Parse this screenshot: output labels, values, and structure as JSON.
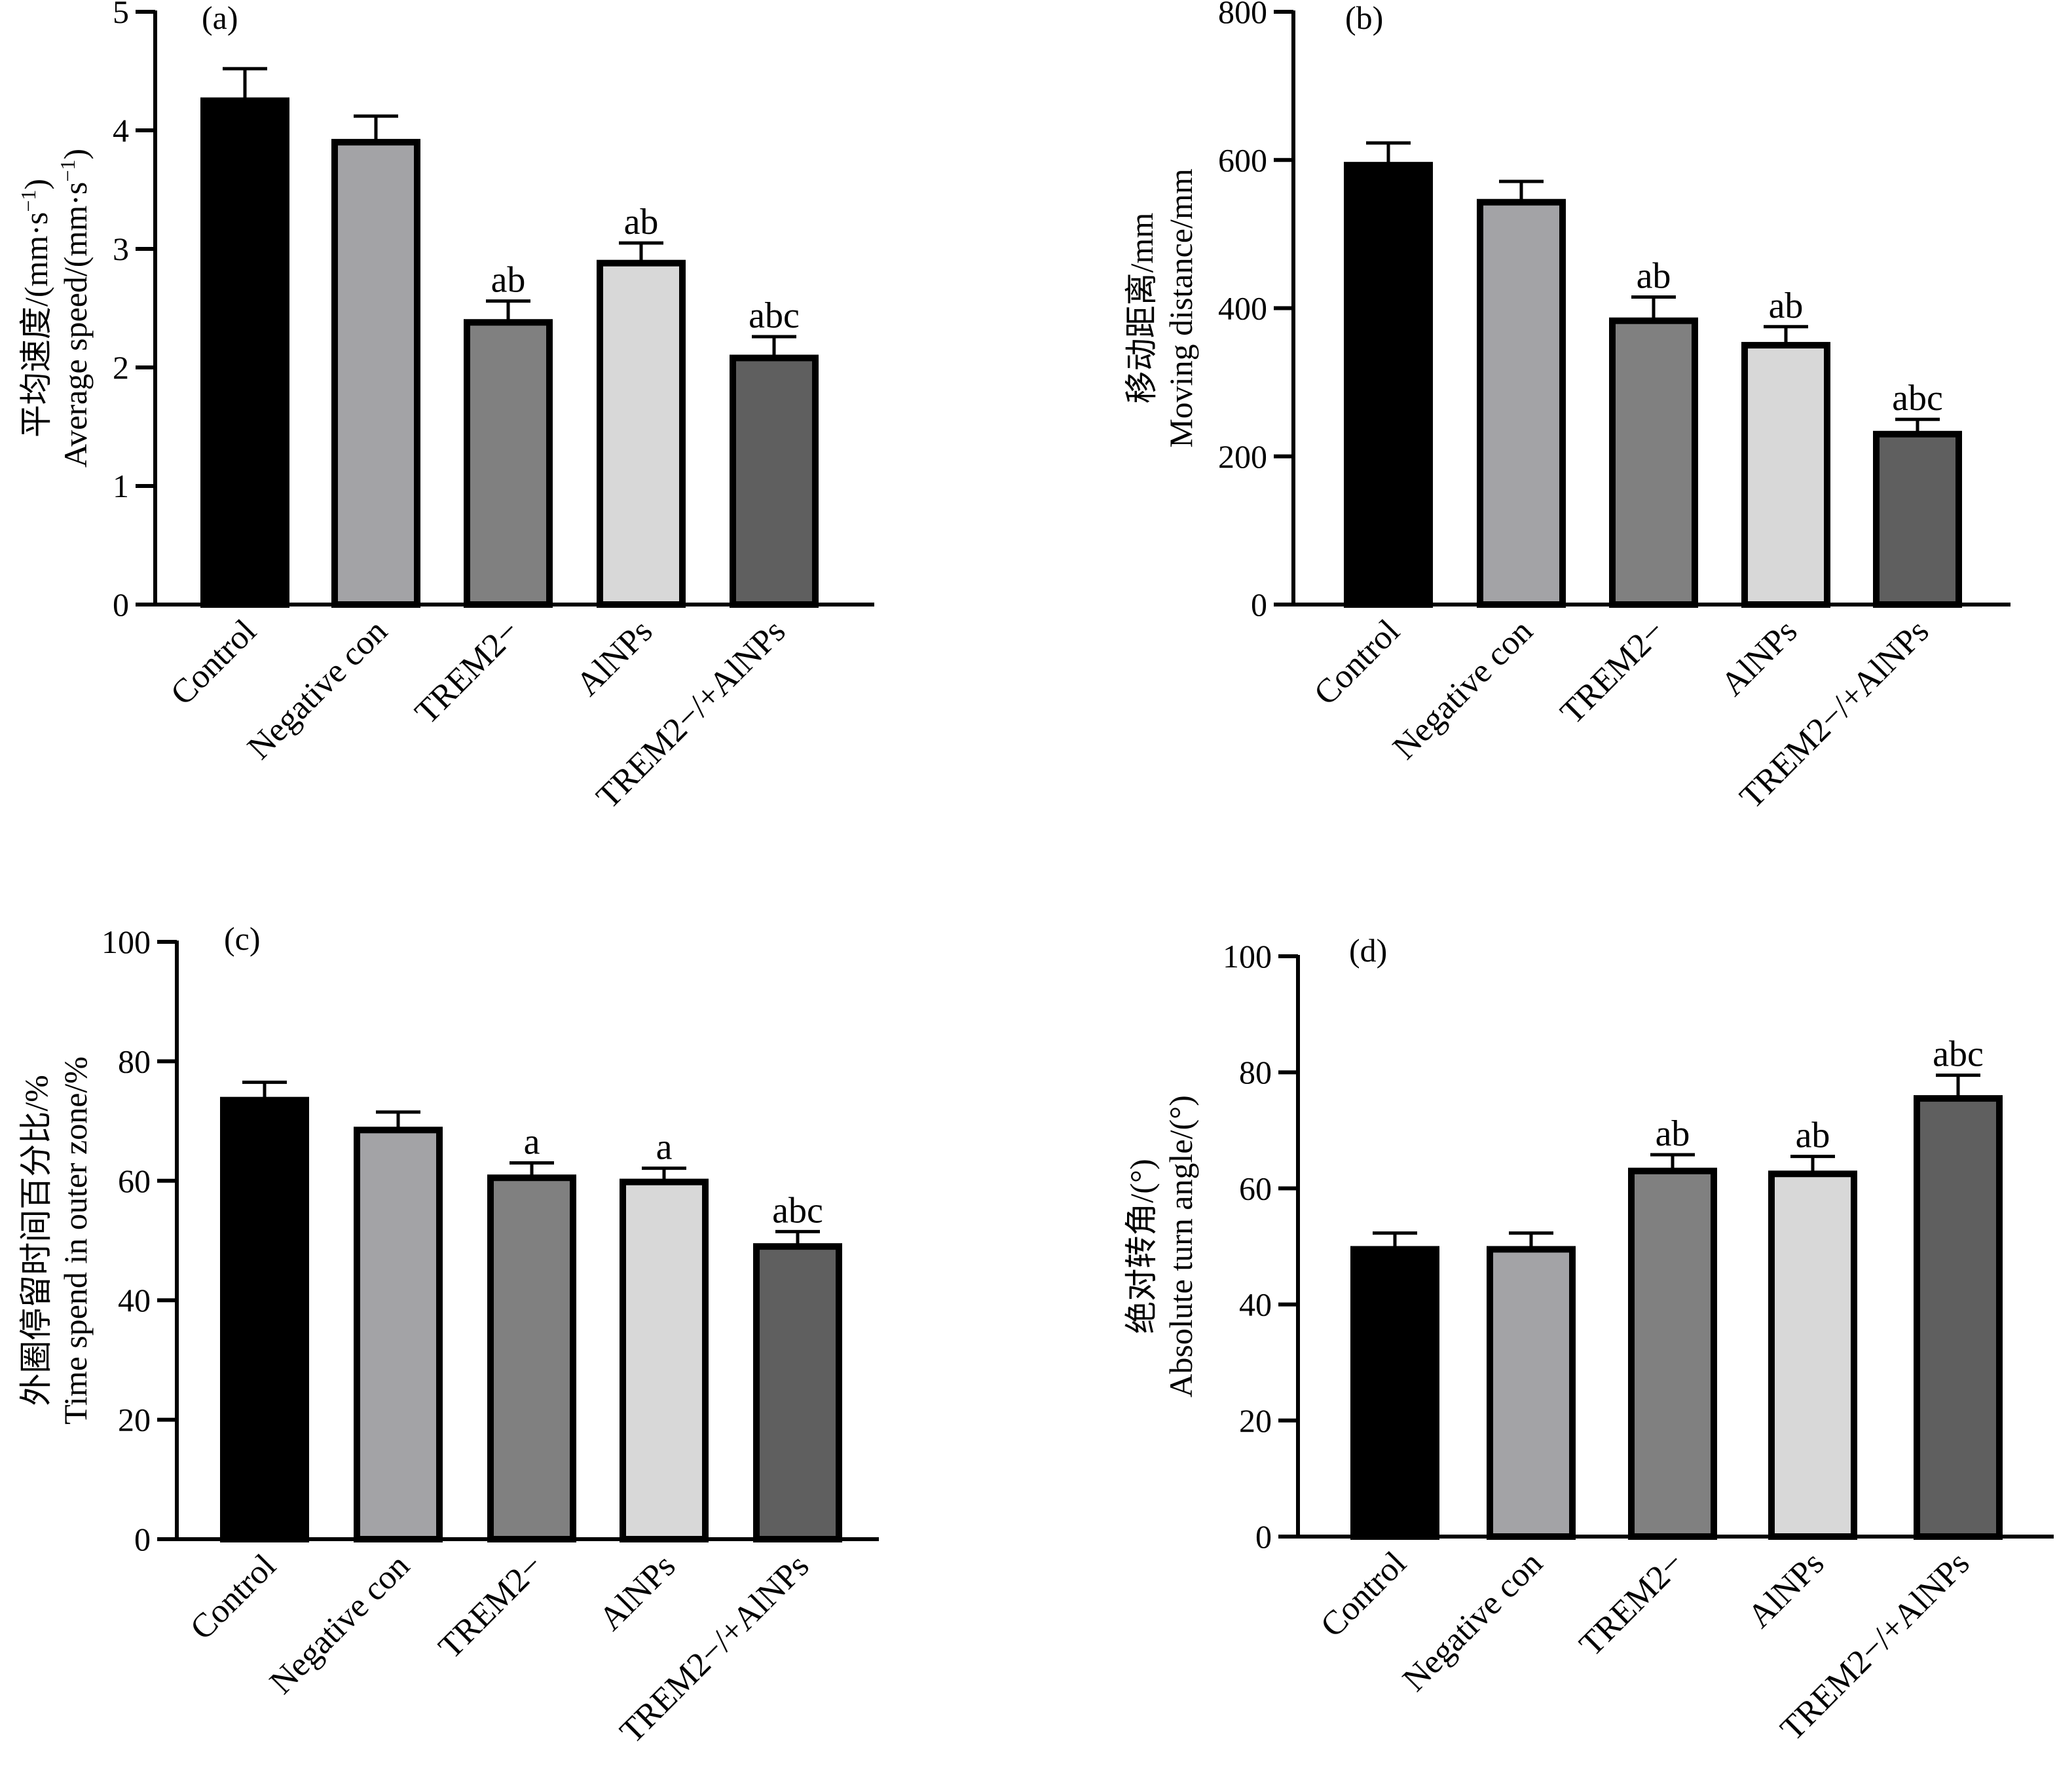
{
  "colors": {
    "control": "#000000",
    "negative_con": "#a3a3a6",
    "trem2": "#808080",
    "alnps": "#d8d8d8",
    "trem2_alnps": "#5f5f5f",
    "outline": "#000000"
  },
  "chart_data": [
    {
      "type": "bar",
      "panel_label": "(a)",
      "ylabel_cn": "平均速度/(mm·s",
      "ylabel_en": "Average speed/(mm·s",
      "ylabel_sup": "−1",
      "ylabel_close": ")",
      "categories": [
        "Control",
        "Negative con",
        "TREM2−",
        "AlNPs",
        "TREM2−/+AlNPs"
      ],
      "values": [
        4.25,
        3.9,
        2.38,
        2.88,
        2.08
      ],
      "errors": [
        0.27,
        0.22,
        0.18,
        0.17,
        0.18
      ],
      "significance": [
        "",
        "",
        "ab",
        "ab",
        "abc"
      ],
      "ylim": [
        0,
        5
      ],
      "yticks": [
        0,
        1,
        2,
        3,
        4,
        5
      ],
      "ytick_labels": [
        "0",
        "1",
        "2",
        "3",
        "4",
        "5"
      ]
    },
    {
      "type": "bar",
      "panel_label": "(b)",
      "ylabel_cn": "移动距离/mm",
      "ylabel_en": "Moving distance/mm",
      "categories": [
        "Control",
        "Negative con",
        "TREM2−",
        "AlNPs",
        "TREM2−/+AlNPs"
      ],
      "values": [
        593,
        543,
        383,
        350,
        230
      ],
      "errors": [
        30,
        28,
        32,
        25,
        20
      ],
      "significance": [
        "",
        "",
        "ab",
        "ab",
        "abc"
      ],
      "ylim": [
        0,
        800
      ],
      "yticks": [
        0,
        200,
        400,
        600,
        800
      ],
      "ytick_labels": [
        "0",
        "200",
        "400",
        "600",
        "800"
      ]
    },
    {
      "type": "bar",
      "panel_label": "(c)",
      "ylabel_cn": "外圈停留时间百分比/%",
      "ylabel_en": "Time spend in outer zone/%",
      "categories": [
        "Control",
        "Negative con",
        "TREM2−",
        "AlNPs",
        "TREM2−/+AlNPs"
      ],
      "values": [
        73.5,
        68.5,
        60.5,
        59.8,
        49
      ],
      "errors": [
        3,
        3,
        2.5,
        2.3,
        2.5
      ],
      "significance": [
        "",
        "",
        "a",
        "a",
        "abc"
      ],
      "ylim": [
        0,
        100
      ],
      "yticks": [
        0,
        20,
        40,
        60,
        80,
        100
      ],
      "ytick_labels": [
        "0",
        "20",
        "40",
        "60",
        "80",
        "100"
      ]
    },
    {
      "type": "bar",
      "panel_label": "(d)",
      "ylabel_cn": "绝对转角/(°)",
      "ylabel_en": "Absolute turn angle/(°)",
      "categories": [
        "Control",
        "Negative con",
        "TREM2−",
        "AlNPs",
        "TREM2−/+AlNPs"
      ],
      "values": [
        49.5,
        49.5,
        63,
        62.5,
        75.5
      ],
      "errors": [
        2.8,
        2.8,
        2.8,
        3.0,
        4.0
      ],
      "significance": [
        "",
        "",
        "ab",
        "ab",
        "abc"
      ],
      "ylim": [
        0,
        100
      ],
      "yticks": [
        0,
        20,
        40,
        60,
        80,
        100
      ],
      "ytick_labels": [
        "0",
        "20",
        "40",
        "60",
        "80",
        "100"
      ]
    }
  ]
}
